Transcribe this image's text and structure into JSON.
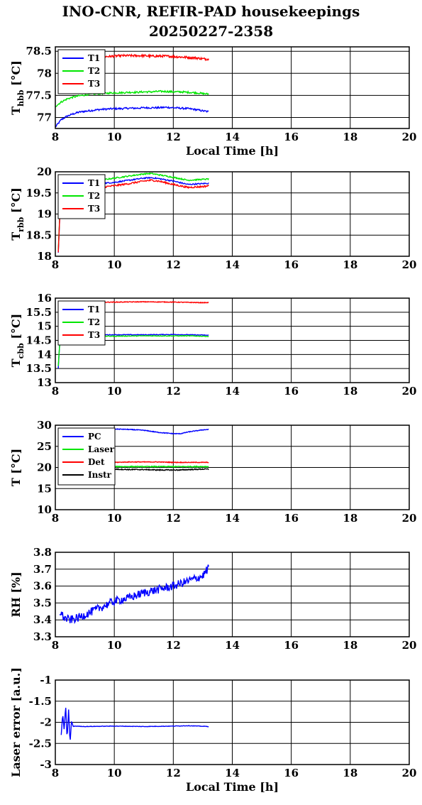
{
  "title_line1": "INO-CNR, REFIR-PAD housekeepings",
  "title_line2": "20250227-2358",
  "chart_data": [
    {
      "type": "line",
      "ylabel_main": "T",
      "ylabel_sub": "hbb",
      "ylabel_unit": "[°C]",
      "xlabel": "Local Time [h]",
      "xlim": [
        8,
        20
      ],
      "xticks": [
        "8",
        "10",
        "12",
        "14",
        "16",
        "18",
        "20"
      ],
      "ylim": [
        76.75,
        78.6
      ],
      "yticks": [
        {
          "v": 77,
          "label": "77"
        },
        {
          "v": 77.5,
          "label": "77.5"
        },
        {
          "v": 78,
          "label": "78"
        },
        {
          "v": 78.5,
          "label": "78.5"
        }
      ],
      "grid": true,
      "legend_position": "top-left",
      "x": [
        8.0,
        8.2,
        8.4,
        8.6,
        8.8,
        9.0,
        9.25,
        9.5,
        9.75,
        10.0,
        10.25,
        10.5,
        10.75,
        11.0,
        11.25,
        11.5,
        11.75,
        12.0,
        12.25,
        12.5,
        12.75,
        13.0,
        13.2
      ],
      "series": [
        {
          "name": "T1",
          "color": "#0000ff",
          "noise": 0.02,
          "values": [
            76.78,
            76.95,
            77.03,
            77.08,
            77.12,
            77.14,
            77.16,
            77.18,
            77.19,
            77.2,
            77.2,
            77.21,
            77.21,
            77.22,
            77.22,
            77.22,
            77.23,
            77.22,
            77.21,
            77.2,
            77.18,
            77.15,
            77.13
          ]
        },
        {
          "name": "T2",
          "color": "#00e600",
          "noise": 0.02,
          "values": [
            77.25,
            77.35,
            77.42,
            77.46,
            77.49,
            77.51,
            77.53,
            77.54,
            77.55,
            77.56,
            77.56,
            77.57,
            77.57,
            77.58,
            77.58,
            77.59,
            77.59,
            77.58,
            77.58,
            77.57,
            77.56,
            77.54,
            77.53
          ]
        },
        {
          "name": "T3",
          "color": "#ff0000",
          "noise": 0.025,
          "x_from": 9.0,
          "values": [
            78.35,
            78.35,
            78.35,
            78.36,
            78.36,
            78.37,
            78.38,
            78.38,
            78.38,
            78.39,
            78.4,
            78.4,
            78.4,
            78.4,
            78.39,
            78.39,
            78.39,
            78.38,
            78.37,
            78.36,
            78.35,
            78.33,
            78.32
          ]
        }
      ]
    },
    {
      "type": "line",
      "ylabel_main": "T",
      "ylabel_sub": "rbb",
      "ylabel_unit": "[°C]",
      "xlabel": "",
      "xlim": [
        8,
        20
      ],
      "xticks": [
        "8",
        "10",
        "12",
        "14",
        "16",
        "18",
        "20"
      ],
      "ylim": [
        18,
        20
      ],
      "yticks": [
        {
          "v": 18,
          "label": "18"
        },
        {
          "v": 18.5,
          "label": "18.5"
        },
        {
          "v": 19,
          "label": "19"
        },
        {
          "v": 19.5,
          "label": "19.5"
        },
        {
          "v": 20,
          "label": "20"
        }
      ],
      "grid": true,
      "legend_position": "top-left",
      "x": [
        8.1,
        8.13,
        8.16,
        8.2,
        8.5,
        9.0,
        9.5,
        10.0,
        10.5,
        11.0,
        11.25,
        11.5,
        12.0,
        12.5,
        13.0,
        13.2
      ],
      "series": [
        {
          "name": "T1",
          "color": "#0000ff",
          "noise": 0.015,
          "values": [
            18.1,
            18.6,
            19.1,
            19.5,
            19.62,
            19.68,
            19.72,
            19.75,
            19.8,
            19.85,
            19.86,
            19.84,
            19.78,
            19.7,
            19.72,
            19.73
          ]
        },
        {
          "name": "T2",
          "color": "#00e600",
          "noise": 0.015,
          "values": [
            18.15,
            18.65,
            19.15,
            19.6,
            19.7,
            19.75,
            19.8,
            19.85,
            19.9,
            19.95,
            19.96,
            19.93,
            19.87,
            19.8,
            19.82,
            19.83
          ]
        },
        {
          "name": "T3",
          "color": "#ff0000",
          "noise": 0.02,
          "values": [
            18.1,
            18.6,
            19.05,
            19.45,
            19.55,
            19.6,
            19.63,
            19.67,
            19.72,
            19.78,
            19.8,
            19.78,
            19.7,
            19.63,
            19.65,
            19.67
          ]
        }
      ]
    },
    {
      "type": "line",
      "ylabel_main": "T",
      "ylabel_sub": "cbb",
      "ylabel_unit": "[°C]",
      "xlabel": "",
      "xlim": [
        8,
        20
      ],
      "xticks": [
        "8",
        "10",
        "12",
        "14",
        "16",
        "18",
        "20"
      ],
      "ylim": [
        13,
        16
      ],
      "yticks": [
        {
          "v": 13,
          "label": "13"
        },
        {
          "v": 13.5,
          "label": "13.5"
        },
        {
          "v": 14,
          "label": "14"
        },
        {
          "v": 14.5,
          "label": "14.5"
        },
        {
          "v": 15,
          "label": "15"
        },
        {
          "v": 15.5,
          "label": "15.5"
        },
        {
          "v": 16,
          "label": "16"
        }
      ],
      "grid": true,
      "legend_position": "top-left",
      "x": [
        8.1,
        8.13,
        8.16,
        8.2,
        8.5,
        9.0,
        10.0,
        11.0,
        12.0,
        12.5,
        13.0,
        13.2
      ],
      "series": [
        {
          "name": "T1",
          "color": "#0000ff",
          "noise": 0.012,
          "values": [
            13.5,
            14.1,
            14.5,
            14.68,
            14.69,
            14.7,
            14.7,
            14.7,
            14.71,
            14.7,
            14.69,
            14.68
          ]
        },
        {
          "name": "T2",
          "color": "#00e600",
          "noise": 0.012,
          "values": [
            13.6,
            14.1,
            14.5,
            14.64,
            14.65,
            14.65,
            14.65,
            14.66,
            14.66,
            14.66,
            14.65,
            14.64
          ]
        },
        {
          "name": "T3",
          "color": "#ff0000",
          "noise": 0.012,
          "x_from": 9.0,
          "values": [
            15.8,
            15.8,
            15.8,
            15.82,
            15.84,
            15.85,
            15.86,
            15.87,
            15.86,
            15.85,
            15.84,
            15.84
          ]
        }
      ]
    },
    {
      "type": "line",
      "ylabel_main": "T [°C]",
      "ylabel_sub": "",
      "ylabel_unit": "",
      "xlabel": "",
      "xlim": [
        8,
        20
      ],
      "xticks": [
        "8",
        "10",
        "12",
        "14",
        "16",
        "18",
        "20"
      ],
      "ylim": [
        10,
        30
      ],
      "yticks": [
        {
          "v": 10,
          "label": "10"
        },
        {
          "v": 15,
          "label": "15"
        },
        {
          "v": 20,
          "label": "20"
        },
        {
          "v": 25,
          "label": "25"
        },
        {
          "v": 30,
          "label": "30"
        }
      ],
      "grid": true,
      "legend_position": "top-left",
      "x": [
        9.5,
        10.0,
        10.5,
        11.0,
        11.5,
        12.0,
        12.25,
        12.5,
        13.0,
        13.2
      ],
      "series": [
        {
          "name": "PC",
          "color": "#0000ff",
          "noise": 0.08,
          "values": [
            29.0,
            29.1,
            29.0,
            28.8,
            28.3,
            28.0,
            28.0,
            28.4,
            28.9,
            29.0
          ]
        },
        {
          "name": "Laser",
          "color": "#00e600",
          "noise": 0.1,
          "values": [
            20.2,
            20.2,
            20.2,
            20.2,
            20.2,
            20.2,
            20.2,
            20.2,
            20.2,
            20.2
          ]
        },
        {
          "name": "Det",
          "color": "#ff0000",
          "noise": 0.08,
          "values": [
            21.2,
            21.2,
            21.3,
            21.3,
            21.3,
            21.2,
            21.2,
            21.2,
            21.2,
            21.2
          ]
        },
        {
          "name": "Instr",
          "color": "#000000",
          "noise": 0.12,
          "values": [
            19.6,
            19.6,
            19.5,
            19.5,
            19.4,
            19.4,
            19.4,
            19.5,
            19.6,
            19.6
          ]
        }
      ]
    },
    {
      "type": "line",
      "ylabel_main": "RH [%]",
      "ylabel_sub": "",
      "ylabel_unit": "",
      "xlabel": "",
      "xlim": [
        8,
        20
      ],
      "xticks": [
        "8",
        "10",
        "12",
        "14",
        "16",
        "18",
        "20"
      ],
      "ylim": [
        3.3,
        3.8
      ],
      "yticks": [
        {
          "v": 3.3,
          "label": "3.3"
        },
        {
          "v": 3.4,
          "label": "3.4"
        },
        {
          "v": 3.5,
          "label": "3.5"
        },
        {
          "v": 3.6,
          "label": "3.6"
        },
        {
          "v": 3.7,
          "label": "3.7"
        },
        {
          "v": 3.8,
          "label": "3.8"
        }
      ],
      "grid": true,
      "legend_position": "none",
      "x": [
        8.15,
        8.3,
        8.5,
        8.75,
        9.0,
        9.25,
        9.5,
        9.75,
        10.0,
        10.5,
        11.0,
        11.5,
        12.0,
        12.5,
        13.0,
        13.2
      ],
      "series": [
        {
          "name": "",
          "color": "#0000ff",
          "noise": 0.025,
          "values": [
            3.45,
            3.41,
            3.4,
            3.41,
            3.43,
            3.45,
            3.47,
            3.49,
            3.51,
            3.53,
            3.56,
            3.58,
            3.6,
            3.63,
            3.66,
            3.71
          ]
        }
      ]
    },
    {
      "type": "line",
      "ylabel_main": "Laser error [a.u.]",
      "ylabel_sub": "",
      "ylabel_unit": "",
      "xlabel": "Local Time [h]",
      "xlim": [
        8,
        20
      ],
      "xticks": [
        "8",
        "10",
        "12",
        "14",
        "16",
        "18",
        "20"
      ],
      "ylim": [
        -3,
        -1
      ],
      "yticks": [
        {
          "v": -3,
          "label": "-3"
        },
        {
          "v": -2.5,
          "label": "-2.5"
        },
        {
          "v": -2,
          "label": "-2"
        },
        {
          "v": -1.5,
          "label": "-1.5"
        },
        {
          "v": -1,
          "label": "-1"
        }
      ],
      "grid": true,
      "legend_position": "none",
      "x": [
        8.2,
        8.25,
        8.3,
        8.35,
        8.4,
        8.45,
        8.5,
        8.55,
        8.6,
        8.65,
        9.0,
        10.0,
        11.0,
        12.0,
        12.5,
        13.2
      ],
      "series": [
        {
          "name": "",
          "color": "#0000ff",
          "noise": 0.006,
          "values": [
            -2.3,
            -1.8,
            -2.2,
            -1.6,
            -2.4,
            -1.7,
            -2.5,
            -1.95,
            -2.1,
            -2.09,
            -2.1,
            -2.09,
            -2.1,
            -2.09,
            -2.08,
            -2.1
          ]
        }
      ]
    }
  ]
}
